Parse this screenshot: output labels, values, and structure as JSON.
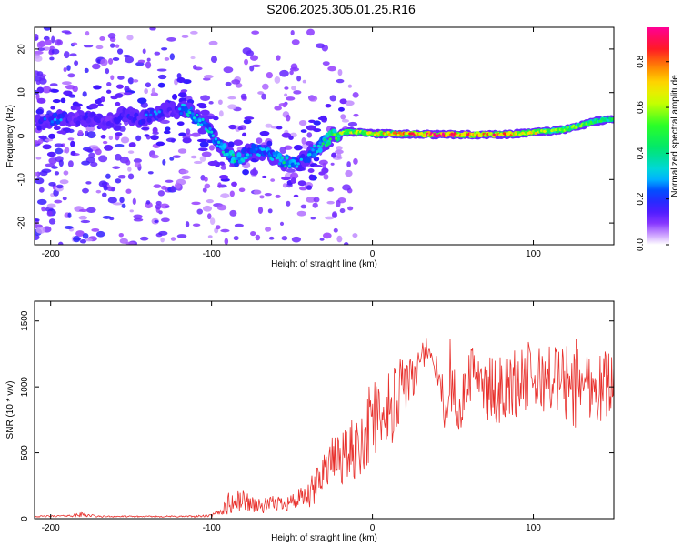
{
  "title": "S206.2025.305.01.25.R16",
  "colors": {
    "snr_line": "#e8302c",
    "frame": "#000000",
    "band_core": "#ff1f3a",
    "band_mid": "#00d4ff",
    "band_edge": "#3a1cff",
    "haze": "#b08cff"
  },
  "chart_data": [
    {
      "type": "heatmap",
      "name": "spectrogram",
      "xlabel": "Height of straight line (km)",
      "ylabel": "Frequency (Hz)",
      "xlim": [
        -210,
        150
      ],
      "ylim": [
        -25,
        25
      ],
      "xticks": [
        -200,
        -100,
        0,
        100
      ],
      "xtick_labels": [
        "-200",
        "-100",
        "0",
        "100"
      ],
      "yticks": [
        -20,
        -10,
        0,
        10,
        20
      ],
      "ytick_labels": [
        "-20",
        "-10",
        "0",
        "10",
        "20"
      ],
      "colorbar": {
        "label": "Normalized spectral amplitude",
        "range": [
          0,
          0.95
        ],
        "ticks": [
          0.0,
          0.2,
          0.4,
          0.6,
          0.8
        ],
        "tick_labels": [
          "0.0",
          "0.2",
          "0.4",
          "0.6",
          "0.8"
        ],
        "colormap": "rainbow (white-violet-blue-cyan-green-yellow-orange-red-magenta)"
      },
      "ridge": {
        "x": [
          -205,
          -195,
          -185,
          -175,
          -165,
          -155,
          -145,
          -135,
          -125,
          -115,
          -105,
          -95,
          -85,
          -75,
          -65,
          -55,
          -45,
          -35,
          -25,
          -15,
          0,
          20,
          40,
          60,
          80,
          100,
          120,
          140,
          150
        ],
        "frequency": [
          3,
          4,
          4,
          4,
          3,
          5,
          4,
          5,
          6,
          6,
          3,
          -2,
          -6,
          -3,
          -4,
          -6,
          -6,
          -3,
          0,
          1,
          0.5,
          0.5,
          0.3,
          0.3,
          0.3,
          0.8,
          1.5,
          3.5,
          4
        ],
        "amplitude": [
          0.2,
          0.25,
          0.15,
          0.2,
          0.15,
          0.2,
          0.2,
          0.25,
          0.15,
          0.3,
          0.3,
          0.3,
          0.35,
          0.25,
          0.3,
          0.35,
          0.25,
          0.3,
          0.45,
          0.55,
          0.6,
          0.7,
          0.85,
          0.75,
          0.75,
          0.6,
          0.5,
          0.45,
          0.4
        ]
      }
    },
    {
      "type": "line",
      "name": "snr",
      "xlabel": "Height of straight line (km)",
      "ylabel": "SNR (10 * v/v)",
      "xlim": [
        -210,
        150
      ],
      "ylim": [
        0,
        1650
      ],
      "xticks": [
        -200,
        -100,
        0,
        100
      ],
      "xtick_labels": [
        "-200",
        "-100",
        "0",
        "100"
      ],
      "yticks": [
        0,
        500,
        1000,
        1500
      ],
      "ytick_labels": [
        "0",
        "500",
        "1000",
        "1500"
      ],
      "envelope": {
        "x": [
          -210,
          -190,
          -180,
          -170,
          -140,
          -110,
          -100,
          -95,
          -90,
          -80,
          -70,
          -60,
          -50,
          -40,
          -35,
          -32,
          -30,
          -20,
          -10,
          -5,
          0,
          10,
          20,
          25,
          30,
          35,
          40,
          45,
          50,
          55,
          60,
          65,
          70,
          80,
          90,
          92,
          100,
          110,
          120,
          125,
          130,
          140,
          145,
          150
        ],
        "base": [
          15,
          20,
          25,
          15,
          15,
          15,
          20,
          40,
          80,
          120,
          70,
          100,
          110,
          130,
          180,
          300,
          350,
          400,
          450,
          550,
          650,
          750,
          900,
          1000,
          1200,
          1250,
          1050,
          800,
          900,
          800,
          1000,
          1100,
          900,
          900,
          950,
          1000,
          950,
          1000,
          950,
          900,
          1000,
          900,
          950,
          1000
        ],
        "amp": [
          12,
          12,
          40,
          12,
          10,
          15,
          20,
          60,
          180,
          160,
          120,
          120,
          140,
          200,
          350,
          300,
          300,
          450,
          500,
          600,
          650,
          650,
          500,
          450,
          250,
          150,
          300,
          400,
          400,
          450,
          400,
          400,
          500,
          500,
          550,
          650,
          550,
          500,
          600,
          800,
          500,
          550,
          550,
          450
        ]
      }
    }
  ]
}
